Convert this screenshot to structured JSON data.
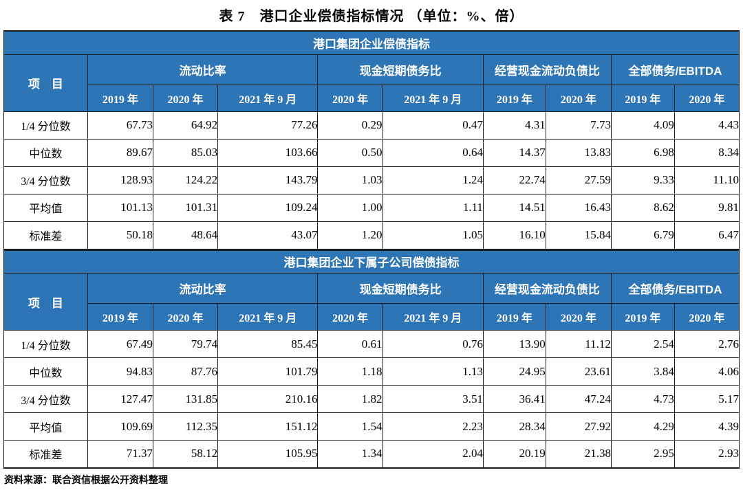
{
  "page": {
    "title": "表 7　港口企业偿债指标情况 （单位：%、倍）",
    "source_note": "资料来源：联合资信根据公开资料整理"
  },
  "colors": {
    "header_blue": "#2E75B6",
    "header_text": "#FFFFFF",
    "border": "#1C1C1C",
    "body_text": "#000000"
  },
  "columns": {
    "item_header": "项　目",
    "groups": [
      {
        "label": "流动比率",
        "sub": [
          "2019 年",
          "2020 年",
          "2021 年 9 月"
        ]
      },
      {
        "label": "现金短期债务比",
        "sub": [
          "2020 年",
          "2021 年 9 月"
        ]
      },
      {
        "label": "经营现金流动负债比",
        "sub": [
          "2019 年",
          "2020 年"
        ]
      },
      {
        "label": "全部债务/EBITDA",
        "sub": [
          "2019 年",
          "2020 年"
        ]
      }
    ]
  },
  "sections": [
    {
      "band_title": "港口集团企业偿债指标",
      "rows": [
        {
          "label": "1/4 分位数",
          "values": [
            "67.73",
            "64.92",
            "77.26",
            "0.29",
            "0.47",
            "4.31",
            "7.73",
            "4.09",
            "4.43"
          ]
        },
        {
          "label": "中位数",
          "values": [
            "89.67",
            "85.03",
            "103.66",
            "0.50",
            "0.64",
            "14.37",
            "13.83",
            "6.98",
            "8.34"
          ]
        },
        {
          "label": "3/4 分位数",
          "values": [
            "128.93",
            "124.22",
            "143.79",
            "1.03",
            "1.24",
            "22.74",
            "27.59",
            "9.33",
            "11.10"
          ]
        },
        {
          "label": "平均值",
          "values": [
            "101.13",
            "101.31",
            "109.24",
            "1.00",
            "1.11",
            "14.51",
            "16.43",
            "8.62",
            "9.81"
          ]
        },
        {
          "label": "标准差",
          "values": [
            "50.18",
            "48.64",
            "43.07",
            "1.20",
            "1.05",
            "16.10",
            "15.84",
            "6.79",
            "6.47"
          ]
        }
      ]
    },
    {
      "band_title": "港口集团企业下属子公司偿债指标",
      "rows": [
        {
          "label": "1/4 分位数",
          "values": [
            "67.49",
            "79.74",
            "85.45",
            "0.61",
            "0.76",
            "13.90",
            "11.12",
            "2.54",
            "2.76"
          ]
        },
        {
          "label": "中位数",
          "values": [
            "94.83",
            "87.76",
            "101.79",
            "1.18",
            "1.13",
            "24.95",
            "23.61",
            "3.84",
            "4.06"
          ]
        },
        {
          "label": "3/4 分位数",
          "values": [
            "127.47",
            "131.85",
            "210.16",
            "1.82",
            "3.51",
            "36.41",
            "47.24",
            "4.73",
            "5.17"
          ]
        },
        {
          "label": "平均值",
          "values": [
            "109.69",
            "112.35",
            "151.12",
            "1.54",
            "2.23",
            "28.34",
            "27.92",
            "4.29",
            "4.39"
          ]
        },
        {
          "label": "标准差",
          "values": [
            "71.37",
            "58.12",
            "105.95",
            "1.34",
            "2.04",
            "20.19",
            "21.38",
            "2.95",
            "2.93"
          ]
        }
      ]
    }
  ]
}
